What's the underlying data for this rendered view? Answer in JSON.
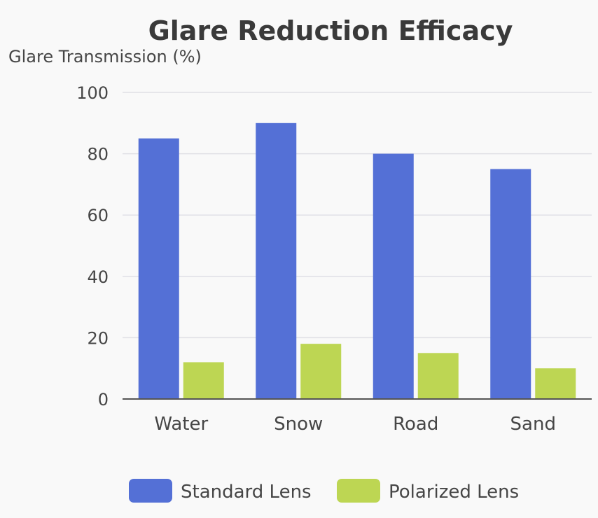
{
  "chart_data": {
    "type": "bar",
    "title": "Glare Reduction Efficacy",
    "xlabel": "",
    "ylabel": "Glare Transmission (%)",
    "ylim": [
      0,
      100
    ],
    "yticks": [
      0,
      20,
      40,
      60,
      80,
      100
    ],
    "categories": [
      "Water",
      "Snow",
      "Road",
      "Sand"
    ],
    "series": [
      {
        "name": "Standard Lens",
        "color": "#5470d6",
        "values": [
          85,
          90,
          80,
          75
        ]
      },
      {
        "name": "Polarized Lens",
        "color": "#bdd653",
        "values": [
          12,
          18,
          15,
          10
        ]
      }
    ],
    "grid": true,
    "legend_position": "bottom-center"
  }
}
